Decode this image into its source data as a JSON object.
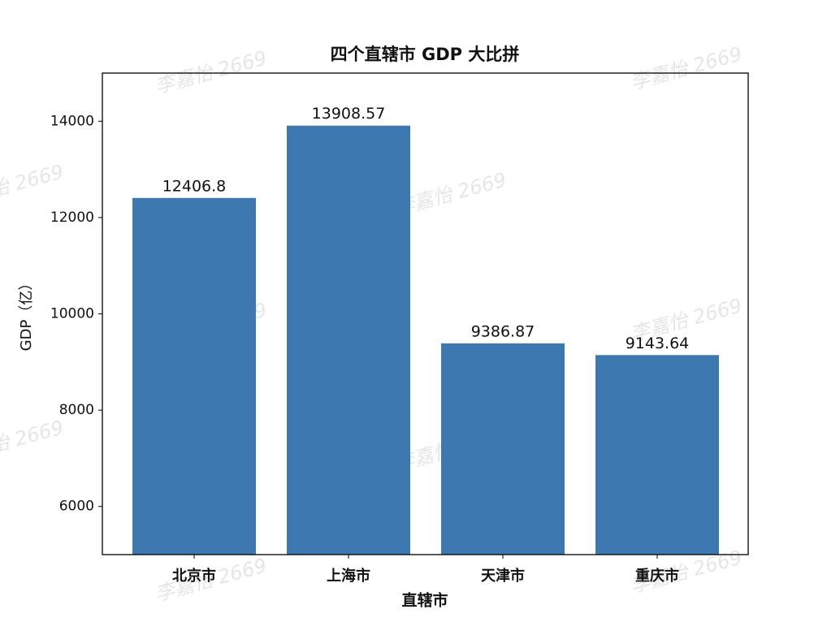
{
  "chart_data": {
    "type": "bar",
    "title": "四个直辖市 GDP 大比拼",
    "x_label": "直辖市",
    "y_label": "GDP（亿）",
    "categories": [
      "北京市",
      "上海市",
      "天津市",
      "重庆市"
    ],
    "values": [
      12406.8,
      13908.57,
      9386.87,
      9143.64
    ],
    "color": "#3d78b0",
    "ylim": [
      5000,
      15000
    ],
    "yticks": [
      6000,
      8000,
      10000,
      12000,
      14000
    ],
    "watermark": "李嘉怡 2669"
  }
}
